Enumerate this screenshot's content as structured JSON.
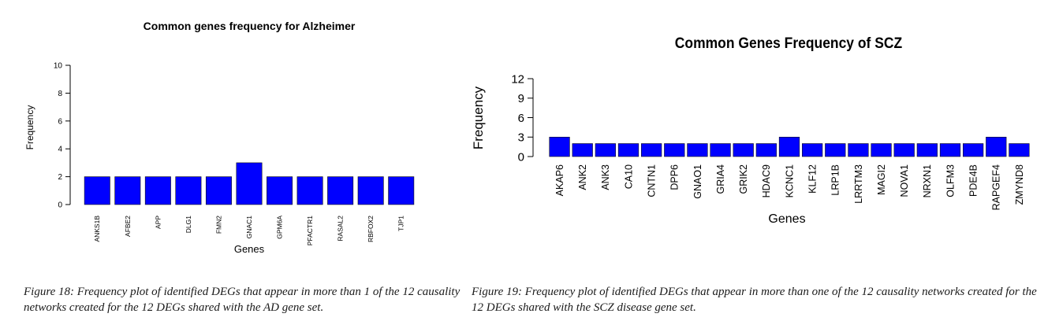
{
  "chart_data": [
    {
      "type": "bar",
      "title": "Common genes frequency for Alzheimer",
      "xlabel": "Genes",
      "ylabel": "Frequency",
      "categories": [
        "ANKS1B",
        "AFBE2",
        "APP",
        "DLG1",
        "FMN2",
        "GNAC1",
        "GPM6A",
        "PFACTR1",
        "RASAL2",
        "RBFOX2",
        "TJP1"
      ],
      "values": [
        2,
        2,
        2,
        2,
        2,
        3,
        2,
        2,
        2,
        2,
        2
      ],
      "ylim": [
        0,
        10
      ],
      "yticks": [
        0,
        2,
        4,
        6,
        8,
        10
      ],
      "bar_color": "#0000ff",
      "grid": false
    },
    {
      "type": "bar",
      "title": "Common Genes Frequency of SCZ",
      "xlabel": "Genes",
      "ylabel": "Frequency",
      "categories": [
        "AKAP6",
        "ANK2",
        "ANK3",
        "CA10",
        "CNTN1",
        "DPP6",
        "GNAO1",
        "GRIA4",
        "GRIK2",
        "HDAC9",
        "KCNC1",
        "KLF12",
        "LRP1B",
        "LRRTM3",
        "MAGI2",
        "NOVA1",
        "NRXN1",
        "OLFM3",
        "PDE4B",
        "RAPGEF4",
        "ZMYND8"
      ],
      "values": [
        3,
        2,
        2,
        2,
        2,
        2,
        2,
        2,
        2,
        2,
        3,
        2,
        2,
        2,
        2,
        2,
        2,
        2,
        2,
        3,
        2
      ],
      "ylim": [
        0,
        12
      ],
      "yticks": [
        0,
        3,
        6,
        9,
        12
      ],
      "bar_color": "#0000ff",
      "grid": false
    }
  ],
  "captions": {
    "figure18": "Figure 18: Frequency plot of identified DEGs that appear in more than 1 of the 12 causality networks created for the 12 DEGs shared with the AD gene set.",
    "figure19": "Figure 19: Frequency plot of identified DEGs that appear in more than one of the 12 causality networks created for the 12 DEGs shared with the SCZ disease gene set."
  }
}
